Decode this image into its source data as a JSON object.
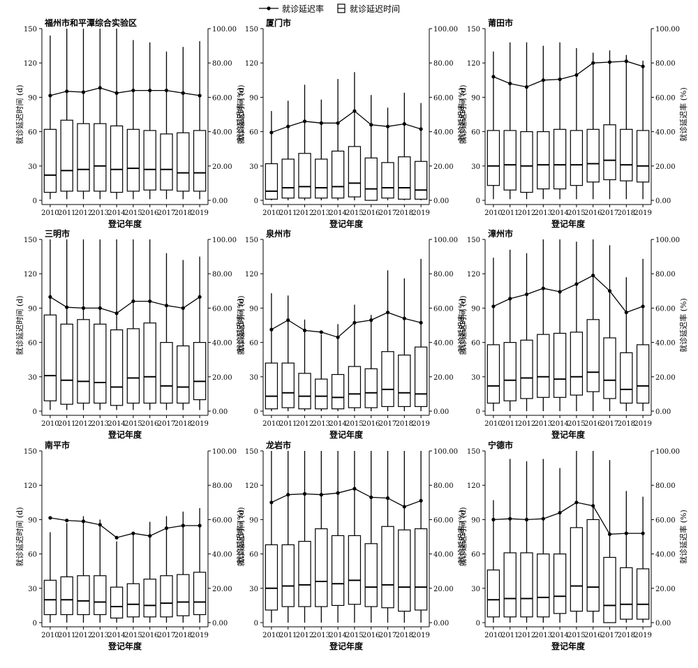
{
  "legend": {
    "rate_label": "就诊延迟率",
    "time_label": "就诊延迟时间"
  },
  "axes_text": {
    "x_title": "登记年度",
    "y_left_title": "就诊延迟时间 (d)",
    "y_right_title": "就诊延迟率 (%)"
  },
  "chart_data": [
    {
      "type": "box+line",
      "title": "福州市和平潭综合实验区",
      "categories": [
        "2010",
        "2011",
        "2012",
        "2013",
        "2014",
        "2015",
        "2016",
        "2017",
        "2018",
        "2019"
      ],
      "xlabel": "登记年度",
      "ylabel": "就诊延迟时间 (d)",
      "y2label": "就诊延迟率 (%)",
      "ylim": [
        0,
        150
      ],
      "y2lim": [
        0,
        100
      ],
      "yticks": [
        "0",
        "30",
        "60",
        "90",
        "120",
        "150"
      ],
      "y2ticks": [
        "0.00",
        "20.00",
        "40.00",
        "60.00",
        "80.00",
        "100.00"
      ],
      "box": [
        {
          "whislo": 1,
          "q1": 7,
          "med": 22,
          "q3": 62,
          "whishi": 144
        },
        {
          "whislo": 1,
          "q1": 8,
          "med": 26,
          "q3": 70,
          "whishi": 150
        },
        {
          "whislo": 1,
          "q1": 8,
          "med": 27,
          "q3": 67,
          "whishi": 150
        },
        {
          "whislo": 1,
          "q1": 8,
          "med": 30,
          "q3": 67,
          "whishi": 150
        },
        {
          "whislo": 1,
          "q1": 7,
          "med": 27,
          "q3": 65,
          "whishi": 150
        },
        {
          "whislo": 1,
          "q1": 8,
          "med": 28,
          "q3": 62,
          "whishi": 140
        },
        {
          "whislo": 1,
          "q1": 9,
          "med": 27,
          "q3": 61,
          "whishi": 138
        },
        {
          "whislo": 1,
          "q1": 9,
          "med": 27,
          "q3": 58,
          "whishi": 130
        },
        {
          "whislo": 1,
          "q1": 8,
          "med": 24,
          "q3": 59,
          "whishi": 134
        },
        {
          "whislo": 1,
          "q1": 8,
          "med": 24,
          "q3": 61,
          "whishi": 139
        }
      ],
      "rate": [
        61.0,
        63.5,
        63.0,
        65.5,
        62.5,
        64.0,
        64.0,
        64.0,
        62.5,
        61.0
      ]
    },
    {
      "type": "box+line",
      "title": "厦门市",
      "categories": [
        "2010",
        "2011",
        "2012",
        "2013",
        "2014",
        "2015",
        "2016",
        "2017",
        "2018",
        "2019"
      ],
      "xlabel": "登记年度",
      "ylabel": "就诊延迟时间 (d)",
      "y2label": "就诊延迟率 (%)",
      "ylim": [
        0,
        150
      ],
      "y2lim": [
        0,
        100
      ],
      "yticks": [
        "0",
        "30",
        "60",
        "90",
        "120",
        "150"
      ],
      "y2ticks": [
        "0.00",
        "20.00",
        "40.00",
        "60.00",
        "80.00",
        "100.00"
      ],
      "box": [
        {
          "whislo": 0,
          "q1": 1,
          "med": 8,
          "q3": 32,
          "whishi": 78
        },
        {
          "whislo": 0,
          "q1": 2,
          "med": 11,
          "q3": 36,
          "whishi": 87
        },
        {
          "whislo": 0,
          "q1": 2,
          "med": 12,
          "q3": 41,
          "whishi": 101
        },
        {
          "whislo": 0,
          "q1": 2,
          "med": 11,
          "q3": 36,
          "whishi": 88
        },
        {
          "whislo": 0,
          "q1": 2,
          "med": 12,
          "q3": 43,
          "whishi": 106
        },
        {
          "whislo": 0,
          "q1": 3,
          "med": 15,
          "q3": 47,
          "whishi": 112
        },
        {
          "whislo": 0,
          "q1": 0,
          "med": 10,
          "q3": 37,
          "whishi": 92
        },
        {
          "whislo": 0,
          "q1": 2,
          "med": 11,
          "q3": 33,
          "whishi": 81
        },
        {
          "whislo": 0,
          "q1": 1,
          "med": 11,
          "q3": 38,
          "whishi": 94
        },
        {
          "whislo": 0,
          "q1": 1,
          "med": 9,
          "q3": 34,
          "whishi": 85
        }
      ],
      "rate": [
        39.5,
        43.0,
        46.0,
        45.0,
        45.0,
        52.0,
        44.0,
        43.0,
        44.5,
        41.5
      ]
    },
    {
      "type": "box+line",
      "title": "莆田市",
      "categories": [
        "2010",
        "2011",
        "2012",
        "2013",
        "2014",
        "2015",
        "2016",
        "2017",
        "2018",
        "2019"
      ],
      "xlabel": "登记年度",
      "ylabel": "就诊延迟时间 (d)",
      "y2label": "就诊延迟率 (%)",
      "ylim": [
        0,
        150
      ],
      "y2lim": [
        0,
        100
      ],
      "yticks": [
        "0",
        "30",
        "60",
        "90",
        "120",
        "150"
      ],
      "y2ticks": [
        "0.00",
        "20.00",
        "40.00",
        "60.00",
        "80.00",
        "100.00"
      ],
      "box": [
        {
          "whislo": 1,
          "q1": 13,
          "med": 30,
          "q3": 61,
          "whishi": 130
        },
        {
          "whislo": 1,
          "q1": 9,
          "med": 31,
          "q3": 61,
          "whishi": 138
        },
        {
          "whislo": 1,
          "q1": 7,
          "med": 30,
          "q3": 60,
          "whishi": 138
        },
        {
          "whislo": 1,
          "q1": 10,
          "med": 31,
          "q3": 60,
          "whishi": 135
        },
        {
          "whislo": 1,
          "q1": 10,
          "med": 31,
          "q3": 62,
          "whishi": 138
        },
        {
          "whislo": 1,
          "q1": 13,
          "med": 31,
          "q3": 61,
          "whishi": 133
        },
        {
          "whislo": 1,
          "q1": 16,
          "med": 32,
          "q3": 62,
          "whishi": 129
        },
        {
          "whislo": 1,
          "q1": 18,
          "med": 35,
          "q3": 66,
          "whishi": 131
        },
        {
          "whislo": 1,
          "q1": 17,
          "med": 31,
          "q3": 62,
          "whishi": 127
        },
        {
          "whislo": 1,
          "q1": 16,
          "med": 30,
          "q3": 61,
          "whishi": 122
        }
      ],
      "rate": [
        72.0,
        68.0,
        66.0,
        70.0,
        70.5,
        73.0,
        80.0,
        80.5,
        81.0,
        78.0
      ]
    },
    {
      "type": "box+line",
      "title": "三明市",
      "categories": [
        "2010",
        "2011",
        "2012",
        "2013",
        "2014",
        "2015",
        "2016",
        "2017",
        "2018",
        "2019"
      ],
      "xlabel": "登记年度",
      "ylabel": "就诊延迟时间 (d)",
      "y2label": "就诊延迟率 (%)",
      "ylim": [
        0,
        150
      ],
      "y2lim": [
        0,
        100
      ],
      "yticks": [
        "0",
        "30",
        "60",
        "90",
        "120",
        "150"
      ],
      "y2ticks": [
        "0.00",
        "20.00",
        "40.00",
        "60.00",
        "80.00",
        "100.00"
      ],
      "box": [
        {
          "whislo": 1,
          "q1": 9,
          "med": 31,
          "q3": 84,
          "whishi": 150
        },
        {
          "whislo": 1,
          "q1": 6,
          "med": 27,
          "q3": 76,
          "whishi": 150
        },
        {
          "whislo": 1,
          "q1": 7,
          "med": 26,
          "q3": 80,
          "whishi": 150
        },
        {
          "whislo": 1,
          "q1": 7,
          "med": 25,
          "q3": 76,
          "whishi": 150
        },
        {
          "whislo": 1,
          "q1": 5,
          "med": 21,
          "q3": 71,
          "whishi": 150
        },
        {
          "whislo": 1,
          "q1": 7,
          "med": 29,
          "q3": 72,
          "whishi": 150
        },
        {
          "whislo": 1,
          "q1": 7,
          "med": 30,
          "q3": 77,
          "whishi": 150
        },
        {
          "whislo": 1,
          "q1": 7,
          "med": 22,
          "q3": 60,
          "whishi": 138
        },
        {
          "whislo": 1,
          "q1": 7,
          "med": 21,
          "q3": 57,
          "whishi": 132
        },
        {
          "whislo": 1,
          "q1": 10,
          "med": 26,
          "q3": 60,
          "whishi": 135
        }
      ],
      "rate": [
        66.5,
        60.5,
        60.0,
        60.0,
        57.0,
        64.0,
        64.0,
        61.5,
        60.0,
        66.5
      ]
    },
    {
      "type": "box+line",
      "title": "泉州市",
      "categories": [
        "2010",
        "2011",
        "2012",
        "2013",
        "2014",
        "2015",
        "2016",
        "2017",
        "2018",
        "2019"
      ],
      "xlabel": "登记年度",
      "ylabel": "就诊延迟时间 (d)",
      "y2label": "就诊延迟率 (%)",
      "ylim": [
        0,
        150
      ],
      "y2lim": [
        0,
        100
      ],
      "yticks": [
        "0",
        "30",
        "60",
        "90",
        "120",
        "150"
      ],
      "y2ticks": [
        "0.00",
        "20.00",
        "40.00",
        "60.00",
        "80.00",
        "100.00"
      ],
      "box": [
        {
          "whislo": 0,
          "q1": 2,
          "med": 13,
          "q3": 42,
          "whishi": 103
        },
        {
          "whislo": 0,
          "q1": 3,
          "med": 16,
          "q3": 42,
          "whishi": 101
        },
        {
          "whislo": 0,
          "q1": 2,
          "med": 13,
          "q3": 33,
          "whishi": 80
        },
        {
          "whislo": 0,
          "q1": 2,
          "med": 13,
          "q3": 28,
          "whishi": 67
        },
        {
          "whislo": 0,
          "q1": 2,
          "med": 12,
          "q3": 32,
          "whishi": 76
        },
        {
          "whislo": 0,
          "q1": 3,
          "med": 15,
          "q3": 39,
          "whishi": 93
        },
        {
          "whislo": 0,
          "q1": 3,
          "med": 16,
          "q3": 37,
          "whishi": 84
        },
        {
          "whislo": 0,
          "q1": 4,
          "med": 19,
          "q3": 52,
          "whishi": 123
        },
        {
          "whislo": 0,
          "q1": 4,
          "med": 16,
          "q3": 49,
          "whishi": 116
        },
        {
          "whislo": 0,
          "q1": 4,
          "med": 15,
          "q3": 56,
          "whishi": 133
        }
      ],
      "rate": [
        47.5,
        53.0,
        47.0,
        46.0,
        43.0,
        51.5,
        53.0,
        57.5,
        54.0,
        51.5
      ]
    },
    {
      "type": "box+line",
      "title": "漳州市",
      "categories": [
        "2010",
        "2011",
        "2012",
        "2013",
        "2014",
        "2015",
        "2016",
        "2017",
        "2018",
        "2019"
      ],
      "xlabel": "登记年度",
      "ylabel": "就诊延迟时间 (d)",
      "y2label": "就诊延迟率 (%)",
      "ylim": [
        0,
        150
      ],
      "y2lim": [
        0,
        100
      ],
      "yticks": [
        "0",
        "30",
        "60",
        "90",
        "120",
        "150"
      ],
      "y2ticks": [
        "0.00",
        "20.00",
        "40.00",
        "60.00",
        "80.00",
        "100.00"
      ],
      "box": [
        {
          "whislo": 0,
          "q1": 7,
          "med": 22,
          "q3": 58,
          "whishi": 134
        },
        {
          "whislo": 0,
          "q1": 9,
          "med": 27,
          "q3": 60,
          "whishi": 141
        },
        {
          "whislo": 0,
          "q1": 11,
          "med": 29,
          "q3": 62,
          "whishi": 138
        },
        {
          "whislo": 0,
          "q1": 12,
          "med": 30,
          "q3": 67,
          "whishi": 150
        },
        {
          "whislo": 0,
          "q1": 12,
          "med": 28,
          "q3": 68,
          "whishi": 150
        },
        {
          "whislo": 0,
          "q1": 14,
          "med": 30,
          "q3": 69,
          "whishi": 148
        },
        {
          "whislo": 0,
          "q1": 17,
          "med": 34,
          "q3": 80,
          "whishi": 150
        },
        {
          "whislo": 0,
          "q1": 11,
          "med": 27,
          "q3": 64,
          "whishi": 145
        },
        {
          "whislo": 0,
          "q1": 7,
          "med": 19,
          "q3": 51,
          "whishi": 117
        },
        {
          "whislo": 0,
          "q1": 7,
          "med": 22,
          "q3": 58,
          "whishi": 133
        }
      ],
      "rate": [
        61.0,
        65.5,
        68.0,
        71.5,
        69.5,
        74.0,
        79.0,
        70.0,
        57.5,
        61.0
      ]
    },
    {
      "type": "box+line",
      "title": "南平市",
      "categories": [
        "2010",
        "2011",
        "2012",
        "2013",
        "2014",
        "2015",
        "2016",
        "2017",
        "2018",
        "2019"
      ],
      "xlabel": "登记年度",
      "ylabel": "就诊延迟时间 (d)",
      "y2label": "就诊延迟率 (%)",
      "ylim": [
        0,
        150
      ],
      "y2lim": [
        0,
        100
      ],
      "yticks": [
        "0",
        "30",
        "60",
        "90",
        "120",
        "150"
      ],
      "y2ticks": [
        "0.00",
        "20.00",
        "40.00",
        "60.00",
        "80.00",
        "100.00"
      ],
      "box": [
        {
          "whislo": 0,
          "q1": 7,
          "med": 20,
          "q3": 37,
          "whishi": 79
        },
        {
          "whislo": 0,
          "q1": 7,
          "med": 20,
          "q3": 40,
          "whishi": 87
        },
        {
          "whislo": 0,
          "q1": 7,
          "med": 19,
          "q3": 41,
          "whishi": 93
        },
        {
          "whislo": 0,
          "q1": 7,
          "med": 18,
          "q3": 41,
          "whishi": 90
        },
        {
          "whislo": 0,
          "q1": 4,
          "med": 14,
          "q3": 31,
          "whishi": 71
        },
        {
          "whislo": 0,
          "q1": 5,
          "med": 16,
          "q3": 34,
          "whishi": 78
        },
        {
          "whislo": 0,
          "q1": 5,
          "med": 15,
          "q3": 38,
          "whishi": 88
        },
        {
          "whislo": 0,
          "q1": 5,
          "med": 17,
          "q3": 41,
          "whishi": 93
        },
        {
          "whislo": 0,
          "q1": 6,
          "med": 18,
          "q3": 42,
          "whishi": 97
        },
        {
          "whislo": 0,
          "q1": 7,
          "med": 18,
          "q3": 44,
          "whishi": 100
        }
      ],
      "rate": [
        61.0,
        59.5,
        59.0,
        57.0,
        49.5,
        52.0,
        50.5,
        55.0,
        56.5,
        56.5
      ]
    },
    {
      "type": "box+line",
      "title": "龙岩市",
      "categories": [
        "2010",
        "2011",
        "2012",
        "2013",
        "2014",
        "2015",
        "2016",
        "2017",
        "2018",
        "2019"
      ],
      "xlabel": "登记年度",
      "ylabel": "就诊延迟时间 (d)",
      "y2label": "就诊延迟率 (%)",
      "ylim": [
        0,
        150
      ],
      "y2lim": [
        0,
        100
      ],
      "yticks": [
        "0",
        "30",
        "60",
        "90",
        "120",
        "150"
      ],
      "y2ticks": [
        "0.00",
        "20.00",
        "40.00",
        "60.00",
        "80.00",
        "100.00"
      ],
      "box": [
        {
          "whislo": 0,
          "q1": 11,
          "med": 30,
          "q3": 68,
          "whishi": 150
        },
        {
          "whislo": 0,
          "q1": 14,
          "med": 32,
          "q3": 68,
          "whishi": 150
        },
        {
          "whislo": 0,
          "q1": 14,
          "med": 33,
          "q3": 71,
          "whishi": 150
        },
        {
          "whislo": 0,
          "q1": 14,
          "med": 36,
          "q3": 82,
          "whishi": 150
        },
        {
          "whislo": 0,
          "q1": 15,
          "med": 34,
          "q3": 76,
          "whishi": 150
        },
        {
          "whislo": 0,
          "q1": 16,
          "med": 37,
          "q3": 76,
          "whishi": 150
        },
        {
          "whislo": 0,
          "q1": 14,
          "med": 31,
          "q3": 69,
          "whishi": 150
        },
        {
          "whislo": 0,
          "q1": 13,
          "med": 33,
          "q3": 84,
          "whishi": 150
        },
        {
          "whislo": 0,
          "q1": 10,
          "med": 31,
          "q3": 81,
          "whishi": 150
        },
        {
          "whislo": 0,
          "q1": 11,
          "med": 31,
          "q3": 82,
          "whishi": 150
        }
      ],
      "rate": [
        70.0,
        74.5,
        75.0,
        74.5,
        75.5,
        78.0,
        73.0,
        72.5,
        67.5,
        71.0
      ]
    },
    {
      "type": "box+line",
      "title": "宁德市",
      "categories": [
        "2010",
        "2011",
        "2012",
        "2013",
        "2014",
        "2015",
        "2016",
        "2017",
        "2018",
        "2019"
      ],
      "xlabel": "登记年度",
      "ylabel": "就诊延迟时间 (d)",
      "y2label": "就诊延迟率 (%)",
      "ylim": [
        0,
        150
      ],
      "y2lim": [
        0,
        100
      ],
      "yticks": [
        "0",
        "30",
        "60",
        "90",
        "120",
        "150"
      ],
      "y2ticks": [
        "0.00",
        "20.00",
        "40.00",
        "60.00",
        "80.00",
        "100.00"
      ],
      "box": [
        {
          "whislo": 0,
          "q1": 5,
          "med": 20,
          "q3": 46,
          "whishi": 107
        },
        {
          "whislo": 0,
          "q1": 5,
          "med": 21,
          "q3": 61,
          "whishi": 143
        },
        {
          "whislo": 0,
          "q1": 5,
          "med": 21,
          "q3": 61,
          "whishi": 141
        },
        {
          "whislo": 0,
          "q1": 5,
          "med": 22,
          "q3": 60,
          "whishi": 143
        },
        {
          "whislo": 0,
          "q1": 8,
          "med": 23,
          "q3": 60,
          "whishi": 135
        },
        {
          "whislo": 0,
          "q1": 10,
          "med": 32,
          "q3": 83,
          "whishi": 150
        },
        {
          "whislo": 0,
          "q1": 10,
          "med": 31,
          "q3": 90,
          "whishi": 150
        },
        {
          "whislo": 0,
          "q1": 0,
          "med": 15,
          "q3": 57,
          "whishi": 142
        },
        {
          "whislo": 0,
          "q1": 3,
          "med": 16,
          "q3": 48,
          "whishi": 115
        },
        {
          "whislo": 0,
          "q1": 3,
          "med": 16,
          "q3": 47,
          "whishi": 110
        }
      ],
      "rate": [
        60.0,
        60.5,
        60.0,
        60.5,
        64.0,
        70.0,
        68.0,
        51.5,
        52.0,
        52.0
      ]
    }
  ]
}
